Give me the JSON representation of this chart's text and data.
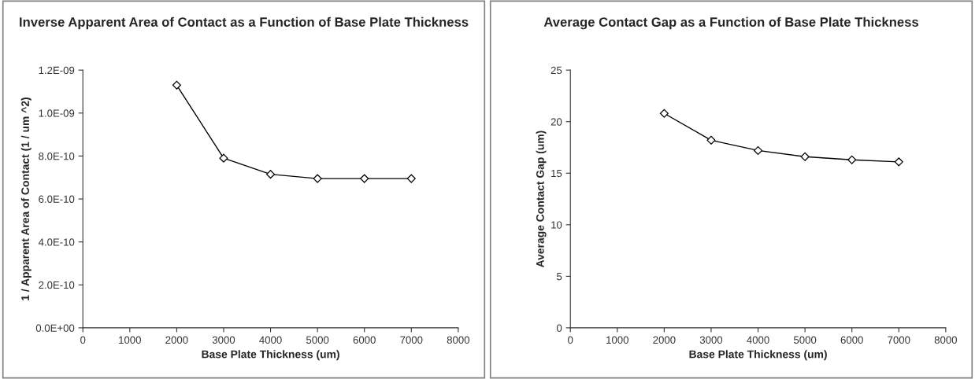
{
  "chart_data": [
    {
      "type": "line",
      "title": "Inverse Apparent Area of Contact as a Function of Base Plate Thickness",
      "xlabel": "Base Plate Thickness (um)",
      "ylabel": "1 / Apparent Area of Contact (1 / um ^2)",
      "x": [
        2000,
        3000,
        4000,
        5000,
        6000,
        7000
      ],
      "series": [
        {
          "color": "#000000",
          "values": [
            1.13e-09,
            7.9e-10,
            7.15e-10,
            6.95e-10,
            6.95e-10,
            6.95e-10
          ]
        }
      ],
      "xlim": [
        0,
        8000
      ],
      "xticks": [
        0,
        1000,
        2000,
        3000,
        4000,
        5000,
        6000,
        7000,
        8000
      ],
      "ylim": [
        0,
        1.2e-09
      ],
      "yticks": [
        {
          "value": 0,
          "label": "0.0E+00"
        },
        {
          "value": 2e-10,
          "label": "2.0E-10"
        },
        {
          "value": 4e-10,
          "label": "4.0E-10"
        },
        {
          "value": 6e-10,
          "label": "6.0E-10"
        },
        {
          "value": 8e-10,
          "label": "8.0E-10"
        },
        {
          "value": 1e-09,
          "label": "1.0E-09"
        },
        {
          "value": 1.2e-09,
          "label": "1.2E-09"
        }
      ],
      "grid": false,
      "legend": false,
      "marker": "diamond",
      "line_style": "solid"
    },
    {
      "type": "line",
      "title": "Average Contact Gap as a Function of Base Plate Thickness",
      "xlabel": "Base Plate Thickness (um)",
      "ylabel": "Average Contact Gap (um)",
      "x": [
        2000,
        3000,
        4000,
        5000,
        6000,
        7000
      ],
      "series": [
        {
          "color": "#000000",
          "values": [
            20.8,
            18.2,
            17.2,
            16.6,
            16.3,
            16.1
          ]
        }
      ],
      "xlim": [
        0,
        8000
      ],
      "xticks": [
        0,
        1000,
        2000,
        3000,
        4000,
        5000,
        6000,
        7000,
        8000
      ],
      "ylim": [
        0,
        25
      ],
      "yticks": [
        0,
        5,
        10,
        15,
        20,
        25
      ],
      "grid": false,
      "legend": false,
      "marker": "diamond",
      "line_style": "solid"
    }
  ]
}
